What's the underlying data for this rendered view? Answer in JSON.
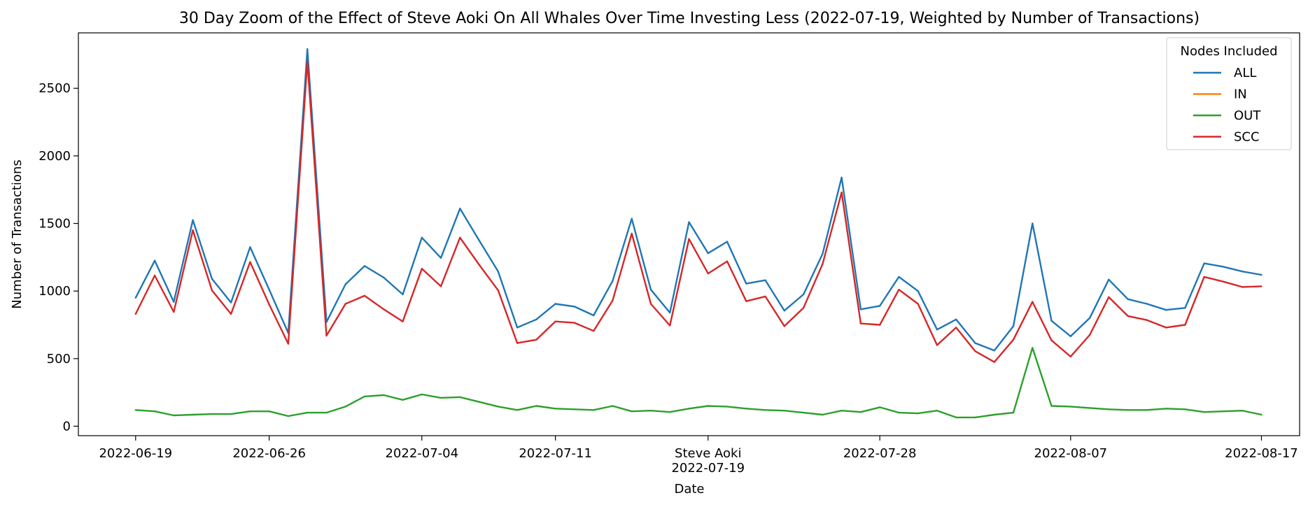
{
  "chart_data": {
    "type": "line",
    "title": "30 Day Zoom of the Effect of Steve Aoki On All Whales Over Time Investing Less (2022-07-19, Weighted by Number of Transactions)",
    "xlabel": "Date",
    "ylabel": "Number of Transactions",
    "x_start": "2022-06-19",
    "x_end": "2022-08-17",
    "xlim": [
      "2022-06-16",
      "2022-08-19"
    ],
    "ylim": [
      -70,
      2910
    ],
    "x_ticks": [
      "2022-06-19",
      "2022-06-26",
      "2022-07-04",
      "2022-07-11",
      "2022-07-19",
      "2022-07-28",
      "2022-08-07",
      "2022-08-17"
    ],
    "y_ticks": [
      0,
      500,
      1000,
      1500,
      2000,
      2500
    ],
    "event": {
      "label": "Steve Aoki",
      "date": "2022-07-19"
    },
    "legend": {
      "title": "Nodes Included",
      "position": "upper right"
    },
    "grid": false,
    "series": [
      {
        "name": "ALL",
        "color": "#1f77b4",
        "values": [
          950,
          1225,
          920,
          1525,
          1090,
          915,
          1325,
          1010,
          690,
          2790,
          770,
          1050,
          1185,
          1100,
          975,
          1395,
          1245,
          1610,
          1375,
          1145,
          730,
          790,
          905,
          885,
          820,
          1075,
          1535,
          1010,
          840,
          1510,
          1280,
          1365,
          1055,
          1080,
          855,
          975,
          1275,
          1840,
          865,
          890,
          1105,
          1000,
          715,
          790,
          615,
          560,
          740,
          1500,
          780,
          665,
          800,
          1085,
          940,
          905,
          860,
          875,
          1205,
          1180,
          1145,
          1120
        ]
      },
      {
        "name": "IN",
        "color": "#ff7f0e",
        "values": []
      },
      {
        "name": "OUT",
        "color": "#2ca02c",
        "values": [
          120,
          110,
          80,
          85,
          90,
          90,
          110,
          110,
          75,
          100,
          100,
          145,
          220,
          230,
          195,
          235,
          210,
          215,
          180,
          145,
          120,
          150,
          130,
          125,
          120,
          150,
          110,
          115,
          105,
          130,
          150,
          145,
          130,
          120,
          115,
          100,
          85,
          115,
          105,
          140,
          100,
          95,
          115,
          65,
          65,
          85,
          100,
          580,
          150,
          145,
          135,
          125,
          120,
          120,
          130,
          125,
          105,
          110,
          115,
          85
        ]
      },
      {
        "name": "SCC",
        "color": "#d62728",
        "values": [
          830,
          1115,
          845,
          1450,
          1005,
          830,
          1215,
          900,
          610,
          2700,
          670,
          905,
          965,
          865,
          775,
          1165,
          1035,
          1395,
          1195,
          1005,
          615,
          640,
          775,
          765,
          705,
          930,
          1425,
          905,
          745,
          1385,
          1130,
          1220,
          925,
          960,
          740,
          875,
          1200,
          1730,
          760,
          750,
          1010,
          905,
          600,
          730,
          555,
          475,
          640,
          920,
          635,
          515,
          675,
          955,
          815,
          785,
          730,
          750,
          1105,
          1070,
          1030,
          1035
        ]
      }
    ]
  }
}
